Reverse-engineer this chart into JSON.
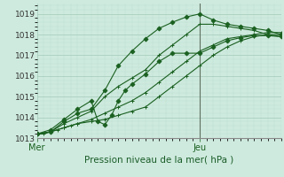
{
  "xlabel": "Pression niveau de la mer( hPa )",
  "background_color": "#ceeade",
  "grid_major_color": "#aacfbf",
  "grid_minor_color": "#bdddd0",
  "line_color": "#1a6020",
  "ylim": [
    1013.0,
    1019.5
  ],
  "xlim": [
    0,
    36
  ],
  "ytick_values": [
    1013,
    1014,
    1015,
    1016,
    1017,
    1018,
    1019
  ],
  "mer_x": 0,
  "jeu_x": 24,
  "vline_x": 24,
  "series": [
    {
      "x": [
        0,
        1,
        2,
        3,
        4,
        5,
        6,
        8,
        10,
        12,
        14,
        16,
        18,
        20,
        22,
        24,
        26,
        28,
        30,
        32,
        34,
        36
      ],
      "y": [
        1013.2,
        1013.2,
        1013.3,
        1013.4,
        1013.5,
        1013.6,
        1013.7,
        1013.8,
        1013.9,
        1014.1,
        1014.3,
        1014.5,
        1015.0,
        1015.5,
        1016.0,
        1016.5,
        1017.0,
        1017.4,
        1017.7,
        1017.9,
        1018.0,
        1018.0
      ],
      "marker": "+",
      "markersize": 3.5,
      "linewidth": 0.8
    },
    {
      "x": [
        0,
        2,
        4,
        6,
        8,
        10,
        12,
        14,
        16,
        18,
        20,
        22,
        24,
        26,
        28,
        30,
        32,
        34,
        36
      ],
      "y": [
        1013.2,
        1013.3,
        1013.5,
        1013.7,
        1013.9,
        1014.2,
        1014.5,
        1014.8,
        1015.2,
        1015.7,
        1016.2,
        1016.7,
        1017.2,
        1017.5,
        1017.8,
        1017.9,
        1018.0,
        1018.1,
        1018.1
      ],
      "marker": "+",
      "markersize": 3.5,
      "linewidth": 0.8
    },
    {
      "x": [
        0,
        2,
        4,
        6,
        8,
        10,
        12,
        14,
        16,
        18,
        20,
        22,
        24,
        26,
        28,
        30,
        32,
        34,
        36
      ],
      "y": [
        1013.2,
        1013.3,
        1013.8,
        1014.2,
        1014.4,
        1015.3,
        1016.5,
        1017.2,
        1017.8,
        1018.3,
        1018.6,
        1018.85,
        1019.0,
        1018.7,
        1018.5,
        1018.4,
        1018.3,
        1018.2,
        1018.0
      ],
      "marker": "D",
      "markersize": 2.5,
      "linewidth": 0.8
    },
    {
      "x": [
        0,
        2,
        4,
        6,
        8,
        9,
        10,
        11,
        12,
        13,
        14,
        16,
        18,
        20,
        22,
        24,
        26,
        28,
        30,
        32,
        34,
        36
      ],
      "y": [
        1013.2,
        1013.4,
        1013.9,
        1014.4,
        1014.8,
        1013.8,
        1013.65,
        1014.1,
        1014.8,
        1015.3,
        1015.6,
        1016.1,
        1016.7,
        1017.1,
        1017.1,
        1017.1,
        1017.4,
        1017.7,
        1017.85,
        1017.95,
        1017.95,
        1017.9
      ],
      "marker": "D",
      "markersize": 2.5,
      "linewidth": 0.8
    },
    {
      "x": [
        0,
        2,
        4,
        6,
        8,
        10,
        12,
        14,
        16,
        18,
        20,
        22,
        24,
        26,
        28,
        30,
        32,
        34,
        36
      ],
      "y": [
        1013.2,
        1013.3,
        1013.7,
        1014.0,
        1014.3,
        1015.0,
        1015.5,
        1015.9,
        1016.3,
        1017.0,
        1017.5,
        1018.0,
        1018.5,
        1018.5,
        1018.4,
        1018.3,
        1018.2,
        1018.0,
        1017.9
      ],
      "marker": "+",
      "markersize": 3.5,
      "linewidth": 0.8
    }
  ]
}
